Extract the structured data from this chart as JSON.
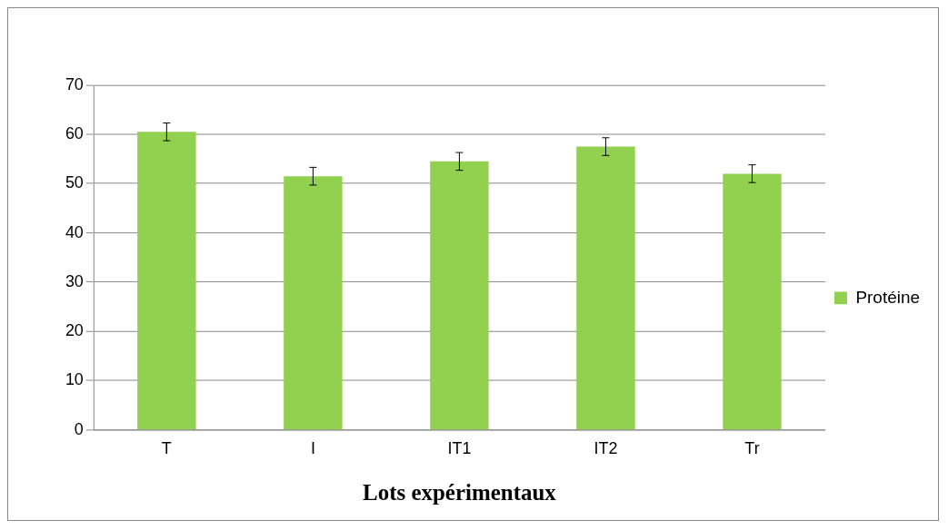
{
  "chart_data": {
    "type": "bar",
    "xlabel": "Lots expérimentaux",
    "categories": [
      "T",
      "I",
      "IT1",
      "IT2",
      "Tr"
    ],
    "series": [
      {
        "name": "Protéine",
        "color": "#92d050",
        "values": [
          60.5,
          51.5,
          54.5,
          57.5,
          52
        ],
        "errors": [
          1.8,
          1.8,
          1.8,
          1.8,
          1.8
        ]
      }
    ],
    "ylim": [
      0,
      70
    ],
    "yticks": [
      0,
      10,
      20,
      30,
      40,
      50,
      60,
      70
    ],
    "grid": "y",
    "legend": "right"
  }
}
